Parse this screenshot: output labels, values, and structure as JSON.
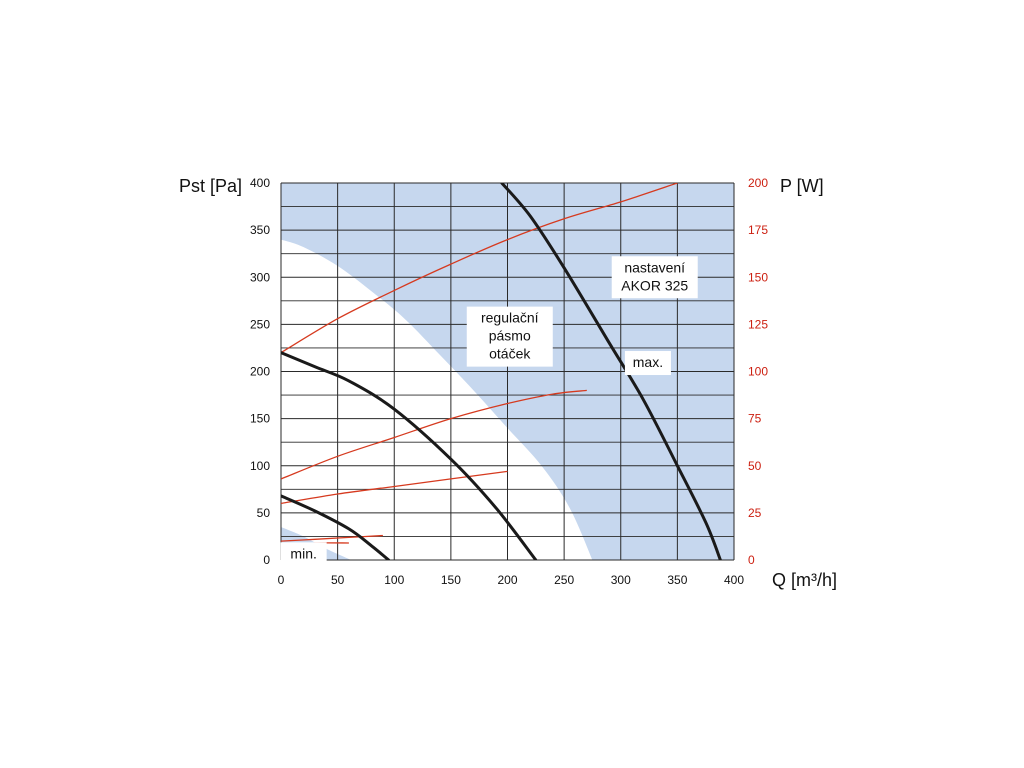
{
  "chart_data": {
    "type": "line",
    "x_axis": {
      "label": "Q [m³/h]",
      "range": [
        0,
        400
      ],
      "ticks": [
        0,
        50,
        100,
        150,
        200,
        250,
        300,
        350,
        400
      ]
    },
    "y_axis_left": {
      "label": "Pst [Pa]",
      "range": [
        0,
        400
      ],
      "ticks": [
        0,
        50,
        100,
        150,
        200,
        250,
        300,
        350,
        400
      ]
    },
    "y_axis_right": {
      "label": "P [W]",
      "range": [
        0,
        200
      ],
      "ticks": [
        0,
        25,
        50,
        75,
        100,
        125,
        150,
        175,
        200
      ],
      "color": "#cc1f10"
    },
    "grid": true,
    "colors": {
      "pressure_curve": "#1a1a1a",
      "power_curve": "#d63a1f",
      "band_fill": "#c6d7ee",
      "right_axis": "#cc1f10"
    },
    "band": {
      "upper": [
        [
          0,
          340
        ],
        [
          20,
          332
        ],
        [
          50,
          312
        ],
        [
          80,
          285
        ],
        [
          110,
          255
        ],
        [
          140,
          218
        ],
        [
          170,
          180
        ],
        [
          200,
          140
        ],
        [
          230,
          100
        ],
        [
          255,
          55
        ],
        [
          275,
          0
        ]
      ],
      "lower_left": [
        [
          0,
          35
        ],
        [
          20,
          25
        ],
        [
          40,
          12
        ],
        [
          62,
          0
        ]
      ]
    },
    "pressure_series": [
      {
        "points": [
          [
            195,
            400
          ],
          [
            220,
            365
          ],
          [
            250,
            310
          ],
          [
            290,
            230
          ],
          [
            320,
            170
          ],
          [
            350,
            100
          ],
          [
            375,
            40
          ],
          [
            388,
            0
          ]
        ]
      },
      {
        "points": [
          [
            0,
            220
          ],
          [
            30,
            205
          ],
          [
            60,
            190
          ],
          [
            100,
            160
          ],
          [
            150,
            107
          ],
          [
            190,
            55
          ],
          [
            225,
            0
          ]
        ]
      },
      {
        "points": [
          [
            0,
            68
          ],
          [
            30,
            52
          ],
          [
            60,
            33
          ],
          [
            80,
            15
          ],
          [
            95,
            0
          ]
        ]
      }
    ],
    "power_series": [
      {
        "points": [
          [
            0,
            110
          ],
          [
            50,
            128
          ],
          [
            100,
            143
          ],
          [
            150,
            157
          ],
          [
            200,
            170
          ],
          [
            250,
            181
          ],
          [
            300,
            190
          ],
          [
            350,
            200
          ]
        ]
      },
      {
        "points": [
          [
            0,
            43
          ],
          [
            50,
            55
          ],
          [
            100,
            65
          ],
          [
            150,
            75
          ],
          [
            200,
            83
          ],
          [
            240,
            88
          ],
          [
            270,
            90
          ]
        ]
      },
      {
        "points": [
          [
            0,
            30
          ],
          [
            50,
            35
          ],
          [
            100,
            39
          ],
          [
            150,
            43
          ],
          [
            200,
            47
          ]
        ]
      },
      {
        "points": [
          [
            0,
            10
          ],
          [
            30,
            11
          ],
          [
            60,
            12
          ],
          [
            90,
            13
          ]
        ]
      },
      {
        "points": [
          [
            0,
            8
          ],
          [
            30,
            9
          ],
          [
            60,
            9
          ]
        ]
      }
    ],
    "annotations": [
      {
        "lines": [
          "nastavení",
          "AKOR 325"
        ],
        "x": 330,
        "y": 300
      },
      {
        "lines": [
          "max."
        ],
        "x": 324,
        "y": 209
      },
      {
        "lines": [
          "regulační",
          "pásmo",
          "otáček"
        ],
        "x": 202,
        "y": 237
      },
      {
        "lines": [
          "min."
        ],
        "x": 20,
        "y": 6
      }
    ]
  }
}
